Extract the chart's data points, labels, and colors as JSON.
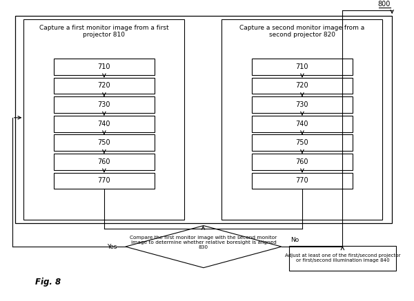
{
  "fig_label": "Fig. 8",
  "diagram_label": "800",
  "left_group_title": "Capture a first monitor image from a first\nprojector 810",
  "right_group_title": "Capture a second monitor image from a\nsecond projector 820",
  "steps": [
    "710",
    "720",
    "730",
    "740",
    "750",
    "760",
    "770"
  ],
  "diamond_text": "Compare the first monitor image with the second monitor\nimage to determine whether relative boresight is aligned\n830",
  "yes_label": "Yes",
  "no_label": "No",
  "adjust_box_text": "Adjust at least one of the first/second projector\nor first/second illumination image 840",
  "bg_color": "#ffffff",
  "box_color": "#ffffff",
  "border_color": "#000000",
  "text_color": "#000000",
  "font_size": 7,
  "small_font_size": 6.5
}
